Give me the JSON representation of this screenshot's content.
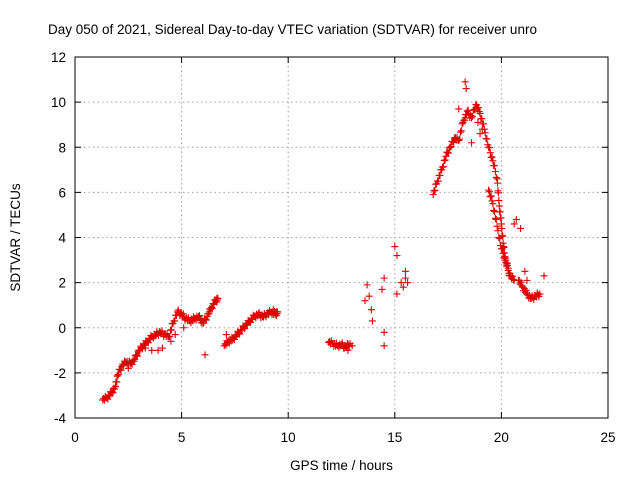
{
  "chart_data": {
    "type": "scatter",
    "title": "Day 050 of 2021, Sidereal Day-to-day VTEC variation (SDTVAR) for receiver unro",
    "xlabel": "GPS time / hours",
    "ylabel": "SDTVAR / TECUs",
    "xlim": [
      0,
      25
    ],
    "ylim": [
      -4,
      12
    ],
    "xticks": [
      0,
      5,
      10,
      15,
      20,
      25
    ],
    "yticks": [
      -4,
      -2,
      0,
      2,
      4,
      6,
      8,
      10,
      12
    ],
    "grid": true,
    "marker": "+",
    "color": "#e00000",
    "series": [
      {
        "name": "SDTVAR",
        "segments": [
          [
            [
              1.3,
              -3.2
            ],
            [
              1.5,
              -3.1
            ],
            [
              1.7,
              -2.9
            ],
            [
              1.9,
              -2.6
            ],
            [
              2.0,
              -2.1
            ],
            [
              2.2,
              -1.7
            ],
            [
              2.4,
              -1.5
            ],
            [
              2.6,
              -1.6
            ],
            [
              2.8,
              -1.4
            ],
            [
              3.0,
              -1.0
            ],
            [
              3.2,
              -0.8
            ],
            [
              3.4,
              -0.6
            ],
            [
              3.6,
              -0.4
            ],
            [
              3.8,
              -0.3
            ],
            [
              4.0,
              -0.2
            ],
            [
              4.2,
              -0.3
            ],
            [
              4.4,
              -0.4
            ],
            [
              4.6,
              0.2
            ],
            [
              4.8,
              0.7
            ],
            [
              5.0,
              0.6
            ],
            [
              5.2,
              0.4
            ],
            [
              5.4,
              0.3
            ],
            [
              5.6,
              0.4
            ],
            [
              5.8,
              0.5
            ],
            [
              6.0,
              0.2
            ],
            [
              6.2,
              0.5
            ],
            [
              6.4,
              0.9
            ],
            [
              6.6,
              1.2
            ],
            [
              6.7,
              1.3
            ]
          ],
          [
            [
              7.0,
              -0.8
            ],
            [
              7.2,
              -0.6
            ],
            [
              7.4,
              -0.5
            ],
            [
              7.6,
              -0.3
            ],
            [
              7.8,
              -0.1
            ],
            [
              8.0,
              0.1
            ],
            [
              8.2,
              0.3
            ],
            [
              8.4,
              0.5
            ],
            [
              8.6,
              0.6
            ],
            [
              8.8,
              0.5
            ],
            [
              9.0,
              0.6
            ],
            [
              9.2,
              0.7
            ],
            [
              9.4,
              0.6
            ],
            [
              9.5,
              0.7
            ]
          ],
          [
            [
              11.9,
              -0.65
            ],
            [
              12.1,
              -0.7
            ],
            [
              12.3,
              -0.8
            ],
            [
              12.5,
              -0.75
            ],
            [
              12.7,
              -0.85
            ],
            [
              12.9,
              -0.7
            ]
          ],
          [
            [
              16.8,
              5.9
            ],
            [
              17.0,
              6.5
            ],
            [
              17.2,
              7.0
            ],
            [
              17.4,
              7.6
            ],
            [
              17.6,
              8.0
            ],
            [
              17.8,
              8.4
            ],
            [
              18.0,
              8.3
            ],
            [
              18.2,
              9.1
            ],
            [
              18.4,
              9.6
            ],
            [
              18.6,
              9.3
            ],
            [
              18.8,
              9.9
            ],
            [
              19.0,
              9.5
            ],
            [
              19.2,
              8.8
            ],
            [
              19.4,
              8.0
            ],
            [
              19.6,
              7.4
            ],
            [
              19.8,
              6.6
            ],
            [
              19.9,
              5.4
            ],
            [
              20.0,
              4.6
            ],
            [
              20.1,
              3.6
            ],
            [
              20.2,
              2.9
            ],
            [
              20.4,
              2.3
            ],
            [
              20.6,
              2.1
            ]
          ],
          [
            [
              19.4,
              6.1
            ],
            [
              19.6,
              5.5
            ],
            [
              19.8,
              4.5
            ],
            [
              20.0,
              3.5
            ],
            [
              20.2,
              3.0
            ],
            [
              20.4,
              2.4
            ]
          ],
          [
            [
              20.8,
              2.1
            ],
            [
              21.0,
              1.8
            ],
            [
              21.2,
              1.5
            ],
            [
              21.4,
              1.3
            ],
            [
              21.6,
              1.4
            ],
            [
              21.8,
              1.5
            ]
          ]
        ],
        "scattered": [
          [
            2.5,
            -1.8
          ],
          [
            2.9,
            -1.2
          ],
          [
            3.3,
            -0.9
          ],
          [
            3.6,
            -1.0
          ],
          [
            3.9,
            -1.0
          ],
          [
            4.1,
            -0.9
          ],
          [
            4.5,
            -0.6
          ],
          [
            4.7,
            -0.3
          ],
          [
            5.1,
            0.0
          ],
          [
            6.1,
            -1.2
          ],
          [
            6.3,
            0.7
          ],
          [
            7.1,
            -0.3
          ],
          [
            9.3,
            0.8
          ],
          [
            12.6,
            -0.9
          ],
          [
            12.8,
            -1.0
          ],
          [
            13.0,
            -0.8
          ],
          [
            13.6,
            1.2
          ],
          [
            13.7,
            1.9
          ],
          [
            13.8,
            1.4
          ],
          [
            13.9,
            0.8
          ],
          [
            13.95,
            0.3
          ],
          [
            14.4,
            1.7
          ],
          [
            14.5,
            2.2
          ],
          [
            14.5,
            -0.2
          ],
          [
            14.5,
            -0.8
          ],
          [
            15.0,
            3.6
          ],
          [
            15.1,
            3.2
          ],
          [
            15.1,
            1.5
          ],
          [
            15.3,
            2.0
          ],
          [
            15.4,
            1.8
          ],
          [
            15.5,
            2.2
          ],
          [
            15.5,
            2.5
          ],
          [
            15.6,
            2.0
          ],
          [
            18.0,
            9.7
          ],
          [
            18.3,
            10.9
          ],
          [
            18.35,
            10.6
          ],
          [
            18.3,
            9.3
          ],
          [
            18.6,
            8.2
          ],
          [
            18.9,
            9.1
          ],
          [
            19.0,
            8.6
          ],
          [
            19.1,
            8.8
          ],
          [
            20.6,
            4.6
          ],
          [
            20.7,
            4.8
          ],
          [
            20.9,
            4.4
          ],
          [
            21.1,
            2.5
          ],
          [
            21.2,
            2.1
          ],
          [
            22.0,
            2.3
          ]
        ]
      }
    ]
  }
}
